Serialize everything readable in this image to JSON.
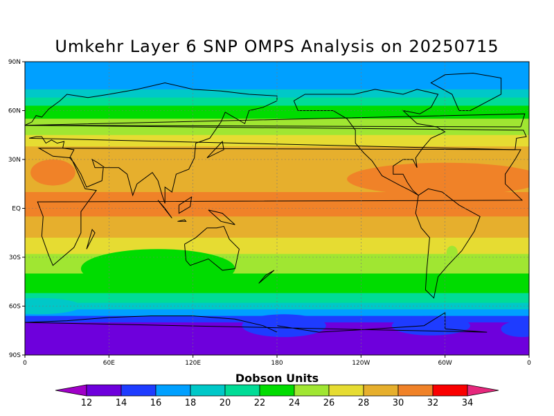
{
  "title": "Umkehr Layer 6 SNP OMPS Analysis on 20250715",
  "colorbar": {
    "title": "Dobson Units",
    "labels": [
      "12",
      "14",
      "16",
      "18",
      "20",
      "22",
      "24",
      "26",
      "28",
      "30",
      "32",
      "34"
    ],
    "colors": [
      "#a000c8",
      "#6e00dc",
      "#1e3cff",
      "#00a0ff",
      "#00c8c8",
      "#00dc96",
      "#00dc00",
      "#a0e632",
      "#e6dc32",
      "#e6af2d",
      "#f08228",
      "#fa0000",
      "#e6287d"
    ]
  },
  "axes": {
    "lat_labels": [
      "90N",
      "60N",
      "30N",
      "EQ",
      "30S",
      "60S",
      "90S"
    ],
    "lon_labels": [
      "0",
      "60E",
      "120E",
      "180",
      "120W",
      "60W",
      "0"
    ]
  },
  "ozone_bands": [
    {
      "lat": 90,
      "du": 17
    },
    {
      "lat": 80,
      "du": 17
    },
    {
      "lat": 73,
      "du": 19
    },
    {
      "lat": 68,
      "du": 21
    },
    {
      "lat": 63,
      "du": 23
    },
    {
      "lat": 55,
      "du": 25
    },
    {
      "lat": 45,
      "du": 27
    },
    {
      "lat": 38,
      "du": 29
    },
    {
      "lat": 10,
      "du": 31
    },
    {
      "lat": -5,
      "du": 29
    },
    {
      "lat": -18,
      "du": 27
    },
    {
      "lat": -28,
      "du": 25
    },
    {
      "lat": -40,
      "du": 23
    },
    {
      "lat": -52,
      "du": 21
    },
    {
      "lat": -58,
      "du": 19
    },
    {
      "lat": -62,
      "du": 17
    },
    {
      "lat": -66,
      "du": 15
    },
    {
      "lat": -70,
      "du": 13
    },
    {
      "lat": -90,
      "du": 13
    }
  ]
}
